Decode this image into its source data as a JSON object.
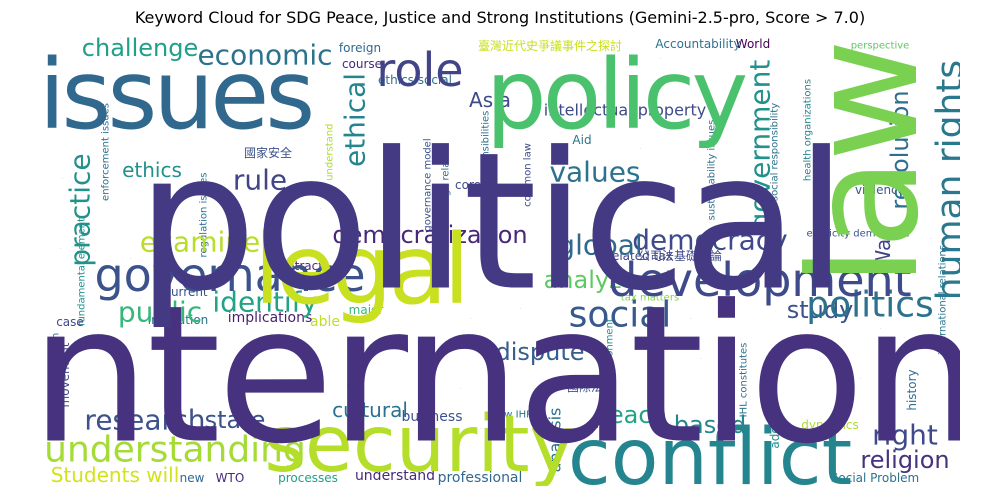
{
  "chart_data": {
    "type": "word_cloud",
    "title": "Keyword Cloud for SDG Peace, Justice and Strong Institutions (Gemini-2.5-pro, Score > 7.0)",
    "background": "#ffffff",
    "colormap": "viridis",
    "words": [
      {
        "text": "political",
        "weight": 100,
        "color": "#443983"
      },
      {
        "text": "international",
        "weight": 95,
        "color": "#46327e"
      },
      {
        "text": "law",
        "weight": 72,
        "color": "#7ad151"
      },
      {
        "text": "policy",
        "weight": 60,
        "color": "#4ac16d"
      },
      {
        "text": "issues",
        "weight": 58,
        "color": "#31688e"
      },
      {
        "text": "legal",
        "weight": 56,
        "color": "#c8e020"
      },
      {
        "text": "conflict",
        "weight": 50,
        "color": "#25858e"
      },
      {
        "text": "security",
        "weight": 46,
        "color": "#b5de2b"
      },
      {
        "text": "development",
        "weight": 36,
        "color": "#3e4a89"
      },
      {
        "text": "governance",
        "weight": 34,
        "color": "#3b528b"
      },
      {
        "text": "role",
        "weight": 32,
        "color": "#414487"
      },
      {
        "text": "human rights",
        "weight": 28,
        "color": "#2a788e"
      },
      {
        "text": "understanding",
        "weight": 28,
        "color": "#a5db36"
      },
      {
        "text": "social",
        "weight": 26,
        "color": "#38598c"
      },
      {
        "text": "politics",
        "weight": 26,
        "color": "#2c728e"
      },
      {
        "text": "government",
        "weight": 24,
        "color": "#21918c"
      },
      {
        "text": "research",
        "weight": 24,
        "color": "#3b528b"
      },
      {
        "text": "examine",
        "weight": 24,
        "color": "#b8de29"
      },
      {
        "text": "global",
        "weight": 23,
        "color": "#31688e"
      },
      {
        "text": "economic",
        "weight": 22,
        "color": "#2c728e"
      },
      {
        "text": "practice",
        "weight": 22,
        "color": "#21918c"
      },
      {
        "text": "public",
        "weight": 21,
        "color": "#35b779"
      },
      {
        "text": "ethical",
        "weight": 21,
        "color": "#25858e"
      },
      {
        "text": "identify",
        "weight": 20,
        "color": "#20a486"
      },
      {
        "text": "values",
        "weight": 20,
        "color": "#2c728e"
      },
      {
        "text": "democracy",
        "weight": 20,
        "color": "#3e4a89"
      },
      {
        "text": "rule",
        "weight": 20,
        "color": "#414487"
      },
      {
        "text": "right",
        "weight": 20,
        "color": "#3e4a89"
      },
      {
        "text": "dispute",
        "weight": 19,
        "color": "#355f8d"
      },
      {
        "text": "religion",
        "weight": 19,
        "color": "#46327e"
      },
      {
        "text": "state",
        "weight": 19,
        "color": "#3b528b"
      },
      {
        "text": "peace",
        "weight": 19,
        "color": "#20a486"
      },
      {
        "text": "challenge",
        "weight": 18,
        "color": "#1fa088"
      },
      {
        "text": "democratization",
        "weight": 18,
        "color": "#482878"
      },
      {
        "text": "analyze",
        "weight": 18,
        "color": "#5ec962"
      },
      {
        "text": "resolution",
        "weight": 18,
        "color": "#2e6e8e"
      },
      {
        "text": "study",
        "weight": 18,
        "color": "#3b528b"
      },
      {
        "text": "based",
        "weight": 18,
        "color": "#25858e"
      },
      {
        "text": "cultural",
        "weight": 17,
        "color": "#2c728e"
      },
      {
        "text": "War",
        "weight": 17,
        "color": "#414487"
      },
      {
        "text": "Asia",
        "weight": 16,
        "color": "#3e4a89"
      },
      {
        "text": "ethics",
        "weight": 16,
        "color": "#21918c"
      },
      {
        "text": "Students will",
        "weight": 16,
        "color": "#d2e21b"
      },
      {
        "text": "intellectual property",
        "weight": 15,
        "color": "#3e4a89"
      },
      {
        "text": "analysis",
        "weight": 15,
        "color": "#2c728e"
      },
      {
        "text": "understand",
        "weight": 13,
        "color": "#482878"
      },
      {
        "text": "able",
        "weight": 12,
        "color": "#bddf26"
      },
      {
        "text": "implications",
        "weight": 12,
        "color": "#481f70"
      },
      {
        "text": "professional",
        "weight": 12,
        "color": "#31688e"
      },
      {
        "text": "business",
        "weight": 12,
        "color": "#3b528b"
      },
      {
        "text": "major",
        "weight": 11,
        "color": "#35b779"
      },
      {
        "text": "processes",
        "weight": 11,
        "color": "#1fa088"
      },
      {
        "text": "Social Problem",
        "weight": 11,
        "color": "#2c728e"
      },
      {
        "text": "dynamics",
        "weight": 11,
        "color": "#addc30"
      },
      {
        "text": "WTO",
        "weight": 11,
        "color": "#482878"
      },
      {
        "text": "new",
        "weight": 10,
        "color": "#31688e"
      },
      {
        "text": "address",
        "weight": 10,
        "color": "#21918c"
      },
      {
        "text": "history",
        "weight": 10,
        "color": "#2e6e8e"
      },
      {
        "text": "core",
        "weight": 10,
        "color": "#3e4a89"
      },
      {
        "text": "Aid",
        "weight": 10,
        "color": "#2c728e"
      },
      {
        "text": "World",
        "weight": 10,
        "color": "#440154"
      },
      {
        "text": "Accountability",
        "weight": 10,
        "color": "#2c728e"
      },
      {
        "text": "violence",
        "weight": 10,
        "color": "#38598c"
      },
      {
        "text": "related tax",
        "weight": 10,
        "color": "#414487"
      },
      {
        "text": "contract",
        "weight": 10,
        "color": "#482878"
      },
      {
        "text": "current",
        "weight": 10,
        "color": "#3b528b"
      },
      {
        "text": "case",
        "weight": 10,
        "color": "#3e4a89"
      },
      {
        "text": "institution",
        "weight": 10,
        "color": "#2c728e"
      },
      {
        "text": "movement",
        "weight": 10,
        "color": "#3e4a89"
      },
      {
        "text": "course",
        "weight": 10,
        "color": "#482878"
      },
      {
        "text": "foreign",
        "weight": 10,
        "color": "#31688e"
      },
      {
        "text": "ethics social",
        "weight": 10,
        "color": "#2c728e"
      },
      {
        "text": "perspective",
        "weight": 9,
        "color": "#5ec962"
      },
      {
        "text": "tax matters",
        "weight": 9,
        "color": "#84d44b"
      },
      {
        "text": "impact",
        "weight": 9,
        "color": "#2e6e8e"
      },
      {
        "text": "ethnicity democratic",
        "weight": 9,
        "color": "#3b528b"
      },
      {
        "text": "social responsibility",
        "weight": 9,
        "color": "#2c728e"
      },
      {
        "text": "sustainability issues",
        "weight": 9,
        "color": "#2c728e"
      },
      {
        "text": "health organizations",
        "weight": 9,
        "color": "#25858e"
      },
      {
        "text": "international relations",
        "weight": 9,
        "color": "#2a788e"
      },
      {
        "text": "international health",
        "weight": 9,
        "color": "#31688e"
      },
      {
        "text": "fundamental element",
        "weight": 9,
        "color": "#21918c"
      },
      {
        "text": "enforcement issues",
        "weight": 9,
        "color": "#2c728e"
      },
      {
        "text": "regulation issues",
        "weight": 9,
        "color": "#2c728e"
      },
      {
        "text": "governance model",
        "weight": 9,
        "color": "#3b528b"
      },
      {
        "text": "foreign related",
        "weight": 9,
        "color": "#2c728e"
      },
      {
        "text": "responsibilities",
        "weight": 9,
        "color": "#2c728e"
      },
      {
        "text": "common law",
        "weight": 9,
        "color": "#3e4a89"
      },
      {
        "text": "will understand",
        "weight": 9,
        "color": "#addc30"
      },
      {
        "text": "environment",
        "weight": 9,
        "color": "#21918c"
      },
      {
        "text": "IHL constitutes",
        "weight": 9,
        "color": "#2c728e"
      },
      {
        "text": "law IHRL",
        "weight": 9,
        "color": "#2c728e"
      },
      {
        "text": "臺灣近代史爭議事件之探討",
        "weight": 11,
        "color": "#c8e020"
      },
      {
        "text": "國家安全",
        "weight": 10,
        "color": "#3b528b"
      },
      {
        "text": "公司法基礎理論",
        "weight": 10,
        "color": "#3e4a89"
      },
      {
        "text": "國際法",
        "weight": 10,
        "color": "#3b528b"
      }
    ]
  }
}
